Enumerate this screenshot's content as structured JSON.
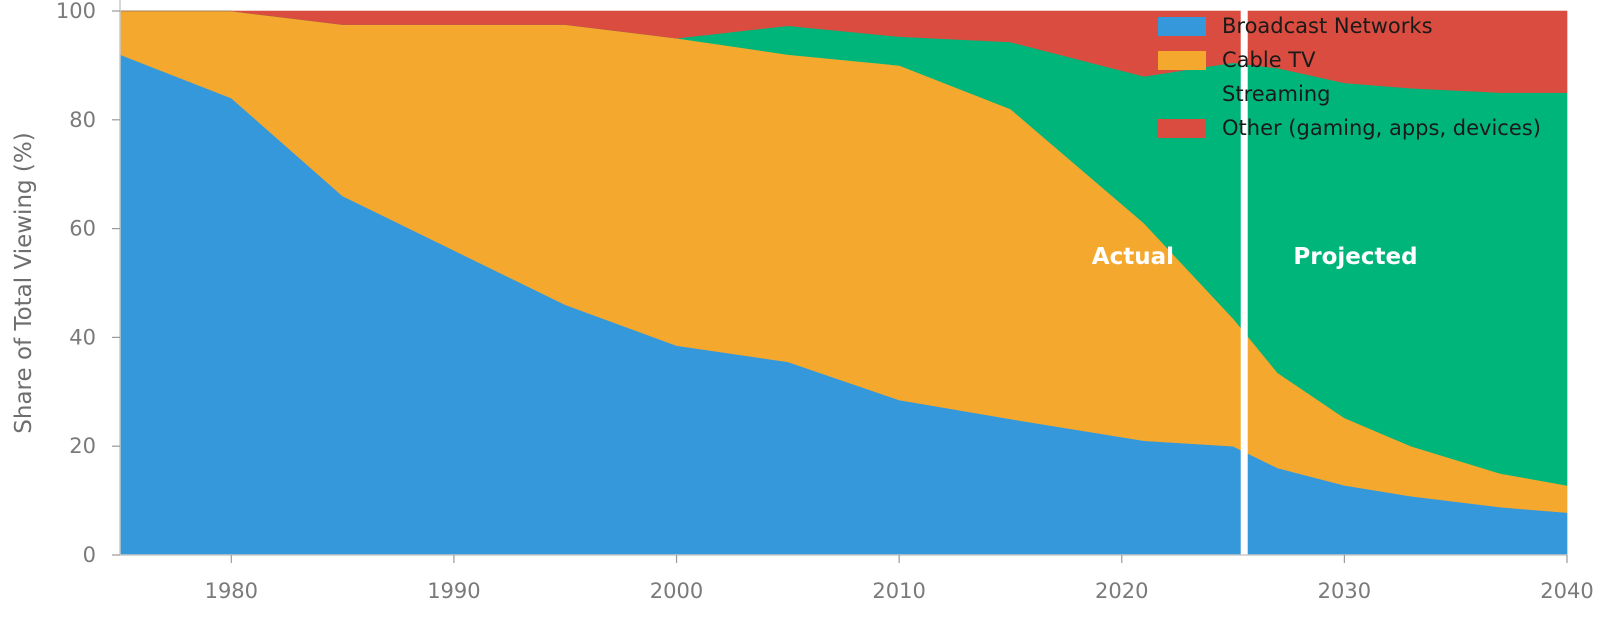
{
  "chart_data": {
    "type": "area",
    "stacked": true,
    "title": "",
    "xlabel": "",
    "ylabel": "Share of Total Viewing (%)",
    "xlim": [
      1975,
      2040
    ],
    "ylim": [
      0,
      100
    ],
    "x_ticks": [
      1980,
      1990,
      2000,
      2010,
      2020,
      2030,
      2040
    ],
    "y_ticks": [
      0,
      20,
      40,
      60,
      80,
      100
    ],
    "legend_position": "top-right",
    "divider_x": 2025.5,
    "annotations": [
      {
        "text": "Actual",
        "x": 2020.5,
        "y": 55
      },
      {
        "text": "Projected",
        "x": 2030.5,
        "y": 55
      }
    ],
    "x": [
      1975,
      1980,
      1985,
      1995,
      2000,
      2005,
      2010,
      2015,
      2021,
      2025,
      2027,
      2030,
      2033,
      2037,
      2040
    ],
    "series": [
      {
        "name": "Broadcast Networks",
        "color": "#3498db",
        "values": [
          92,
          84,
          66,
          46,
          38.5,
          35.5,
          28.5,
          25,
          21,
          20,
          16,
          12.8,
          10.8,
          8.8,
          7.8
        ]
      },
      {
        "name": "Cable TV",
        "color": "#f5a82e",
        "values": [
          8,
          17,
          31.5,
          51.5,
          56.5,
          56.5,
          61.5,
          57,
          40,
          23.5,
          17.5,
          12.4,
          9.2,
          6.2,
          5
        ]
      },
      {
        "name": "Streaming",
        "color": "#00b57a",
        "values": [
          0,
          0,
          0,
          0,
          0,
          5.3,
          5.3,
          12.3,
          27,
          47,
          56,
          61.6,
          65.8,
          70,
          72.2
        ]
      },
      {
        "name": "Other (gaming, apps, devices)",
        "color": "#d94c3f",
        "values": [
          0,
          0,
          2.5,
          2.5,
          5,
          2.7,
          4.7,
          5.7,
          12,
          9.5,
          10.5,
          13.2,
          14.2,
          15,
          15
        ]
      }
    ]
  }
}
